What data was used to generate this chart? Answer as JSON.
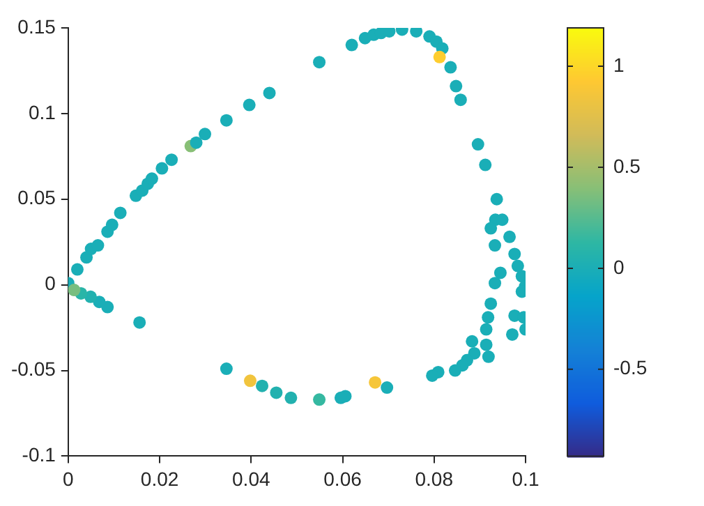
{
  "chart_data": {
    "type": "scatter",
    "marker": "circle",
    "grid": false,
    "xlim": [
      0,
      0.1
    ],
    "xticks": [
      0,
      0.02,
      0.04,
      0.06,
      0.08,
      0.1
    ],
    "ylim": [
      -0.1,
      0.15
    ],
    "yticks": [
      -0.1,
      -0.05,
      0,
      0.05,
      0.1,
      0.15
    ],
    "clim": [
      -0.93,
      1.19
    ],
    "cticks": [
      -0.5,
      0,
      0.5,
      1
    ],
    "x": [
      0,
      0.002,
      0.004,
      0.005,
      0.0065,
      0.0086,
      0.0096,
      0.0114,
      0.0148,
      0.0162,
      0.0174,
      0.0183,
      0.0205,
      0.0226,
      0.0268,
      0.028,
      0.0299,
      0.0346,
      0.0396,
      0.044,
      0.0549,
      0.062,
      0.0649,
      0.0668,
      0.0684,
      0.0702,
      0.073,
      0.0761,
      0.079,
      0.0805,
      0.0818,
      0.0812,
      0.0836,
      0.0848,
      0.0858,
      0.0896,
      0.0912,
      0.0937,
      0.0934,
      0.0949,
      0.0924,
      0.0965,
      0.0933,
      0.0976,
      0.0983,
      0.0945,
      0.0992,
      0.0933,
      0.0999,
      0.0992,
      0.0924,
      0.0976,
      0.0918,
      0.0996,
      0.0914,
      0.1,
      0.0971,
      0.0883,
      0.0914,
      0.0888,
      0.0919,
      0.0872,
      0.0862,
      0.0846,
      0.0809,
      0.0796,
      0.0697,
      0.0671,
      0.0606,
      0.0596,
      0.0549,
      0.0487,
      0.0455,
      0.0424,
      0.0398,
      0.0346,
      0.0156,
      0.0086,
      0.0068,
      0.0049,
      0.0028,
      0.0013
    ],
    "values": [
      0.001,
      0.009,
      0.016,
      0.021,
      0.023,
      0.031,
      0.035,
      0.042,
      0.052,
      0.055,
      0.059,
      0.062,
      0.068,
      0.073,
      0.081,
      0.083,
      0.088,
      0.096,
      0.105,
      0.112,
      0.13,
      0.14,
      0.144,
      0.146,
      0.147,
      0.148,
      0.149,
      0.148,
      0.145,
      0.142,
      0.138,
      0.133,
      0.127,
      0.116,
      0.108,
      0.082,
      0.07,
      0.05,
      0.038,
      0.038,
      0.033,
      0.028,
      0.023,
      0.018,
      0.011,
      0.007,
      0.005,
      0.001,
      -0.001,
      -0.004,
      -0.011,
      -0.018,
      -0.019,
      -0.019,
      -0.026,
      -0.026,
      -0.029,
      -0.033,
      -0.035,
      -0.04,
      -0.042,
      -0.044,
      -0.047,
      -0.05,
      -0.051,
      -0.053,
      -0.06,
      -0.057,
      -0.065,
      -0.066,
      -0.067,
      -0.066,
      -0.063,
      -0.059,
      -0.056,
      -0.049,
      -0.022,
      -0.013,
      -0.01,
      -0.007,
      -0.005,
      -0.003
    ],
    "cvalues": [
      0,
      0,
      0,
      0,
      0,
      0,
      0,
      0,
      0,
      0,
      0,
      0,
      0,
      0,
      0.4,
      0,
      0,
      0,
      0,
      0,
      0,
      0,
      0,
      0,
      0,
      0,
      0,
      0,
      0,
      0,
      0,
      0.95,
      0,
      0,
      0,
      0,
      0,
      0,
      0,
      0,
      0,
      0,
      0,
      0,
      0,
      0,
      0,
      0,
      0,
      0,
      0,
      0,
      0,
      0,
      0,
      0,
      0,
      0,
      0,
      0,
      0,
      0,
      0,
      0,
      0,
      0,
      0,
      0.88,
      0,
      0,
      0.15,
      0.05,
      0.05,
      0.05,
      0.85,
      0,
      0,
      0,
      0,
      0.05,
      0.1,
      0.35
    ]
  }
}
